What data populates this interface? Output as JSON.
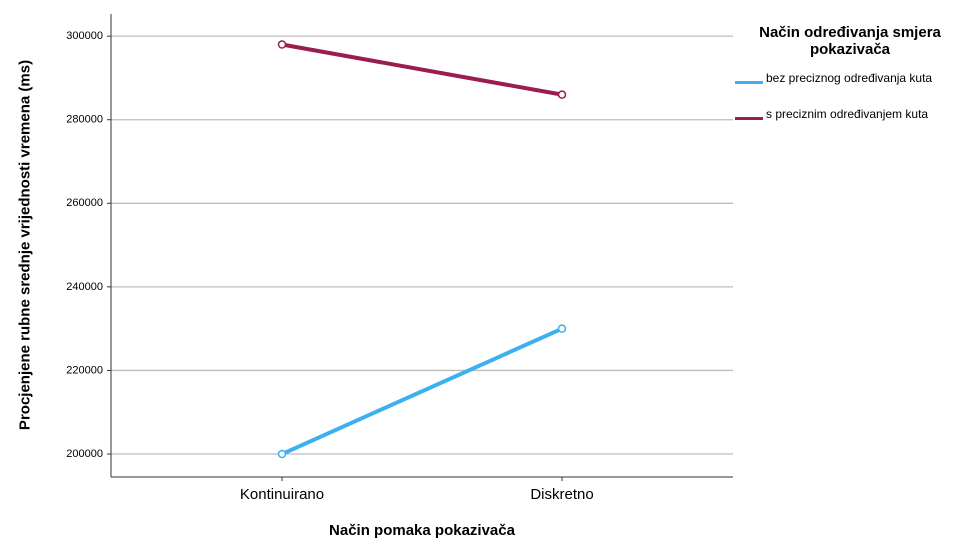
{
  "chart_data": {
    "type": "line",
    "x_label": "Način pomaka pokazivača",
    "y_label": "Procjenjene rubne srednje vrijednosti vremena (ms)",
    "legend_title": "Način određivanja smjera pokazivača",
    "categories": [
      "Kontinuirano",
      "Diskretno"
    ],
    "series": [
      {
        "name": "bez preciznog određivanja kuta",
        "color": "#3eb0f0",
        "values": [
          200000,
          230000
        ]
      },
      {
        "name": "s preciznim određivanjem kuta",
        "color": "#9b1c4f",
        "values": [
          298000,
          286000
        ]
      }
    ],
    "ylim": [
      194500,
      305300
    ],
    "yticks": [
      200000,
      220000,
      240000,
      260000,
      280000,
      300000
    ],
    "grid": true,
    "legend_position": "right"
  }
}
